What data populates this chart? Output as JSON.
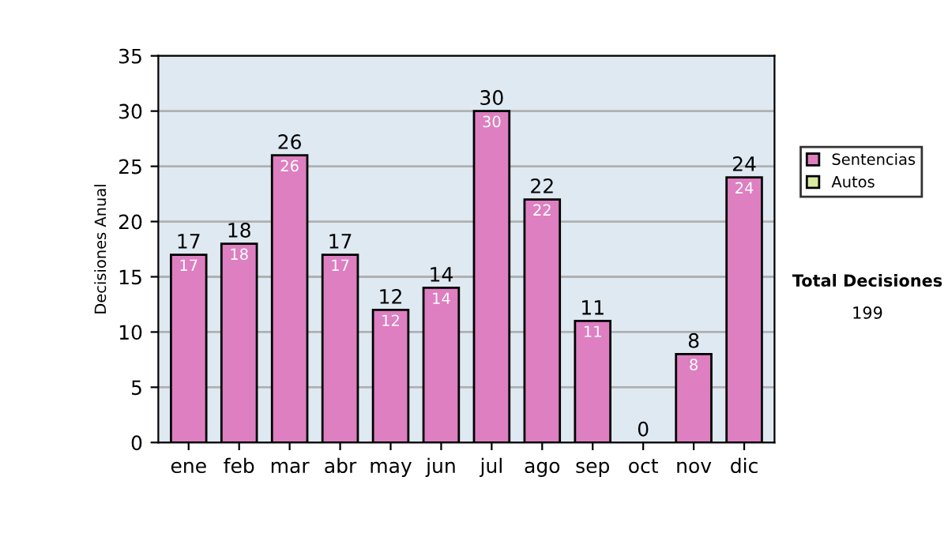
{
  "chart_data": {
    "type": "bar",
    "stacked": true,
    "categories": [
      "ene",
      "feb",
      "mar",
      "abr",
      "may",
      "jun",
      "jul",
      "ago",
      "sep",
      "oct",
      "nov",
      "dic"
    ],
    "series": [
      {
        "name": "Sentencias",
        "color": "#dd7fc0",
        "values": [
          17,
          18,
          26,
          17,
          12,
          14,
          30,
          22,
          11,
          0,
          8,
          24
        ],
        "value_labels": [
          "17",
          "18",
          "26",
          "17",
          "12",
          "14",
          "30",
          "22",
          "11",
          null,
          "8",
          "24"
        ]
      },
      {
        "name": "Autos",
        "color": "#d8eaa0",
        "values": [
          0,
          0,
          0,
          0,
          0,
          0,
          0,
          0,
          0,
          0,
          0,
          0
        ]
      }
    ],
    "totals": [
      "17",
      "18",
      "26",
      "17",
      "12",
      "14",
      "30",
      "22",
      "11",
      "0",
      "8",
      "24"
    ],
    "ylabel": "Decisiones Anual",
    "ylim": [
      0,
      35
    ],
    "yticks": [
      0,
      5,
      10,
      15,
      20,
      25,
      30,
      35
    ],
    "grid": "y",
    "legend": "right",
    "annotations": [
      "Total Decisiones",
      "199"
    ]
  }
}
